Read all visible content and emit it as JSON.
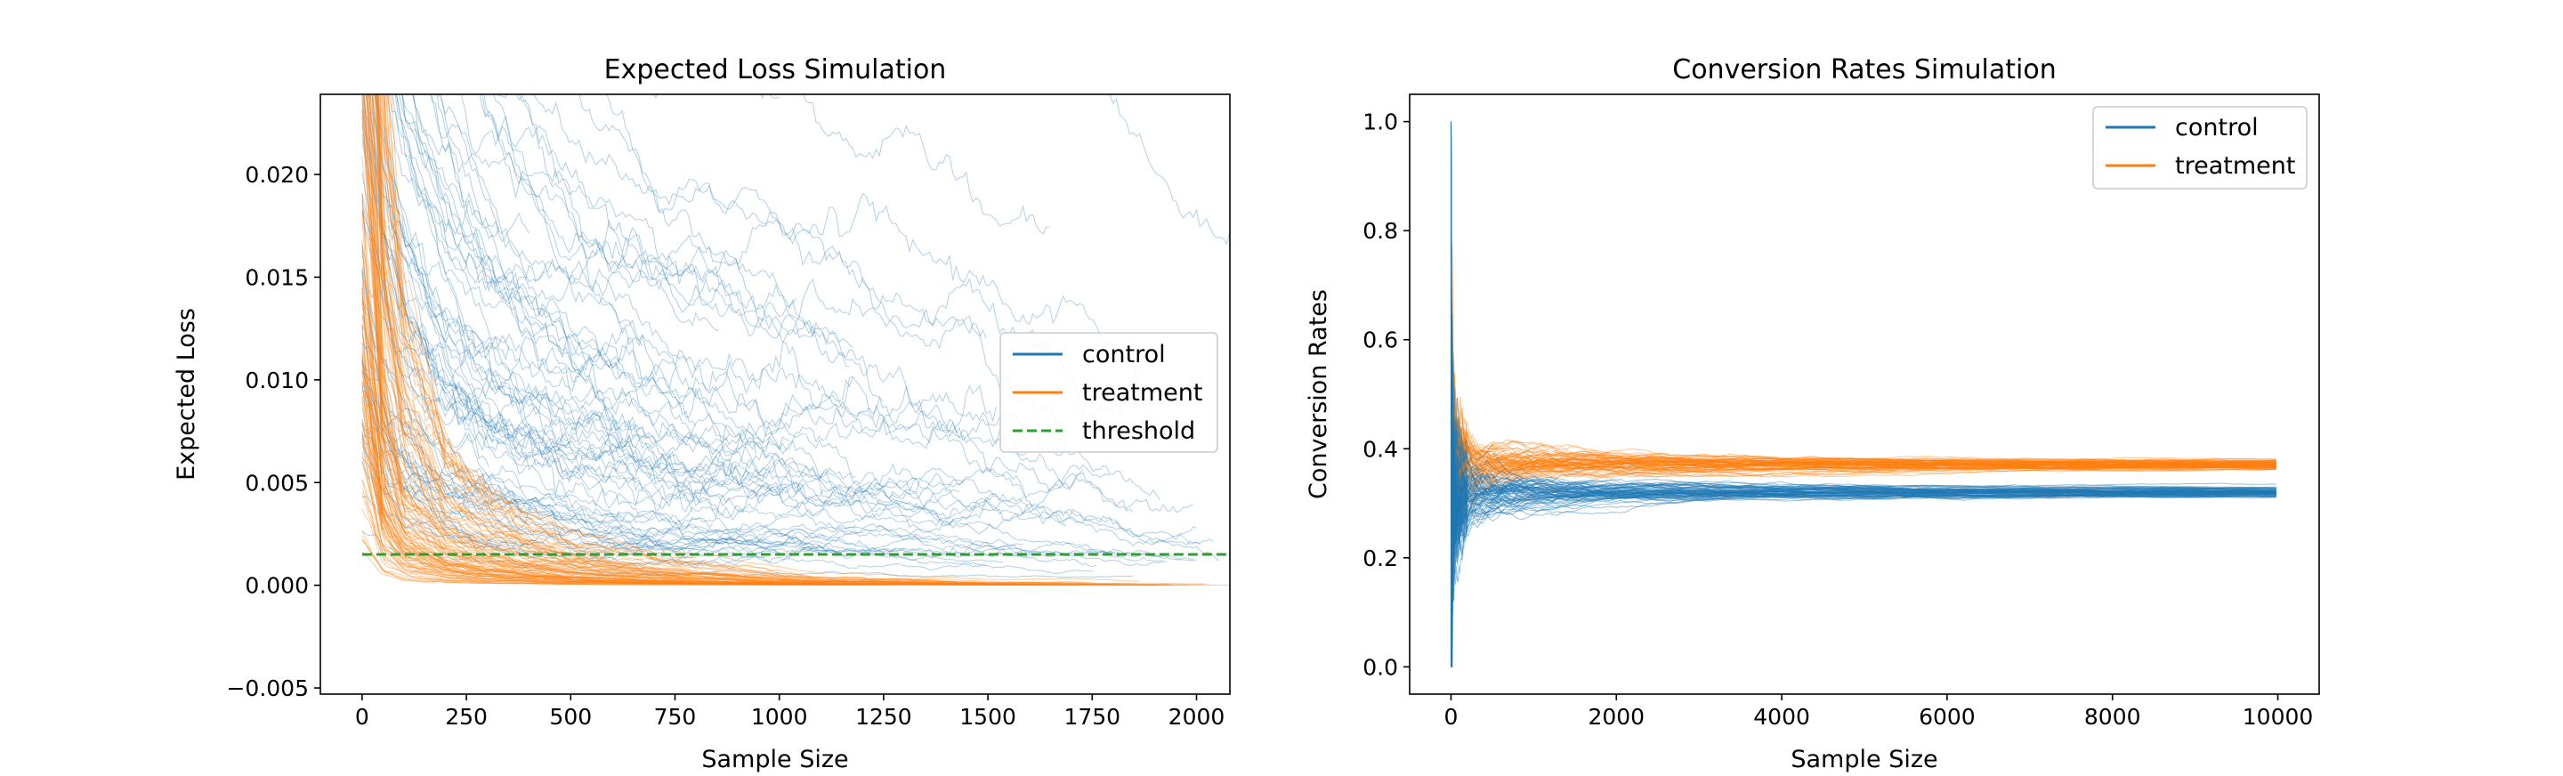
{
  "colors": {
    "control": "#1f77b4",
    "treatment": "#ff7f0e",
    "threshold": "#2ca02c",
    "axis": "#000000",
    "legend_border": "#cccccc"
  },
  "chart_data": [
    {
      "type": "line",
      "title": "Expected Loss Simulation",
      "xlabel": "Sample Size",
      "ylabel": "Expected Loss",
      "xlim": [
        -100,
        2080
      ],
      "ylim": [
        -0.0053,
        0.0239
      ],
      "xticks": [
        0,
        250,
        500,
        750,
        1000,
        1250,
        1500,
        1750,
        2000
      ],
      "xtick_labels": [
        "0",
        "250",
        "500",
        "750",
        "1000",
        "1250",
        "1500",
        "1750",
        "2000"
      ],
      "yticks": [
        -0.005,
        0.0,
        0.005,
        0.01,
        0.015,
        0.02
      ],
      "ytick_labels": [
        "−0.005",
        "0.000",
        "0.005",
        "0.010",
        "0.015",
        "0.020"
      ],
      "legend": {
        "position": "center-right",
        "entries": [
          "control",
          "treatment",
          "threshold"
        ]
      },
      "threshold": {
        "name": "threshold",
        "value": 0.0015,
        "style": "dashed"
      },
      "series": [
        {
          "name": "control",
          "description_values": {
            "x": [
              0,
              50,
              100,
              200,
              300,
              400,
              500,
              700,
              900,
              1100,
              1300,
              1500,
              1700,
              1900,
              2080
            ],
            "y_median": [
              0.022,
              0.016,
              0.013,
              0.01,
              0.0085,
              0.0075,
              0.0065,
              0.0055,
              0.005,
              0.0045,
              0.004,
              0.0035,
              0.003,
              0.0025,
              0.002
            ],
            "y_max": [
              0.024,
              0.024,
              0.024,
              0.024,
              0.024,
              0.024,
              0.024,
              0.024,
              0.024,
              0.024,
              0.024,
              0.024,
              0.024,
              0.022,
              0.018
            ]
          }
        },
        {
          "name": "treatment",
          "description_values": {
            "x": [
              0,
              50,
              100,
              200,
              300,
              400,
              500,
              700,
              900,
              1100,
              1300,
              1500,
              1700,
              1900,
              2080
            ],
            "y_median": [
              0.02,
              0.006,
              0.003,
              0.0015,
              0.001,
              0.0007,
              0.0005,
              0.0003,
              0.0002,
              0.0001,
              0.0001,
              5e-05,
              5e-05,
              3e-05,
              2e-05
            ],
            "y_max": [
              0.024,
              0.024,
              0.024,
              0.024,
              0.022,
              0.02,
              0.018,
              0.015,
              0.012,
              0.008,
              0.006,
              0.004,
              0.002,
              0.001,
              0.0005
            ]
          }
        }
      ]
    },
    {
      "type": "line",
      "title": "Conversion Rates Simulation",
      "xlabel": "Sample Size",
      "ylabel": "Conversion Rates",
      "xlim": [
        -500,
        10500
      ],
      "ylim": [
        -0.05,
        1.05
      ],
      "xticks": [
        0,
        2000,
        4000,
        6000,
        8000,
        10000
      ],
      "xtick_labels": [
        "0",
        "2000",
        "4000",
        "6000",
        "8000",
        "10000"
      ],
      "yticks": [
        0.0,
        0.2,
        0.4,
        0.6,
        0.8,
        1.0
      ],
      "ytick_labels": [
        "0.0",
        "0.2",
        "0.4",
        "0.6",
        "0.8",
        "1.0"
      ],
      "legend": {
        "position": "top-right",
        "entries": [
          "control",
          "treatment"
        ]
      },
      "series": [
        {
          "name": "control",
          "converge_to": 0.32
        },
        {
          "name": "treatment",
          "converge_to": 0.37
        }
      ]
    }
  ]
}
